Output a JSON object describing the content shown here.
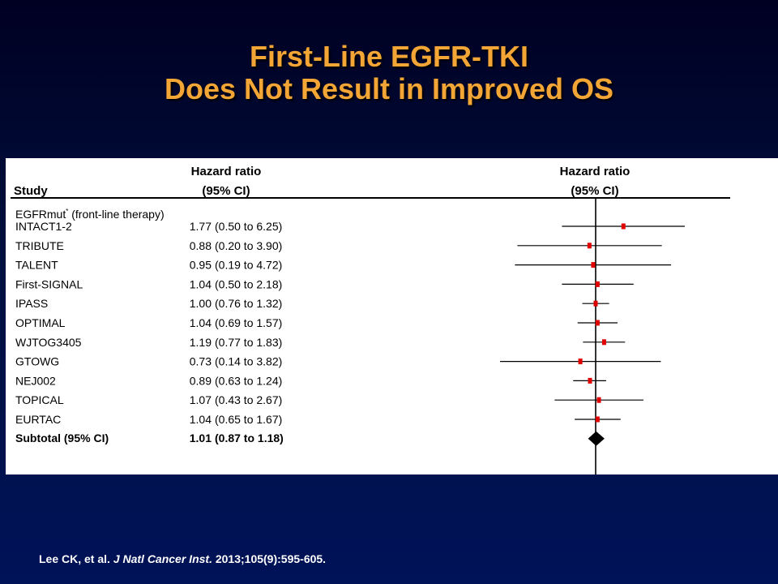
{
  "slide": {
    "title_line1": "First-Line EGFR-TKI",
    "title_line2": "Does Not Result in Improved OS"
  },
  "citation": {
    "authors": "Lee CK, et al. ",
    "journal": "J Natl Cancer Inst.",
    "details": " 2013;105(9):595-605."
  },
  "colors": {
    "title": "#f3a535",
    "marker": "#e00000",
    "line": "#000000",
    "background": "#00103f"
  },
  "chart_data": {
    "type": "forest",
    "columns": {
      "study_header": "Study",
      "hr_header_line1": "Hazard  ratio",
      "hr_header_line2": "(95% CI)",
      "plot_header_line1": "Hazard  ratio",
      "plot_header_line2": "(95% CI)"
    },
    "group_label": "EGFRmut",
    "group_label_sup": "*",
    "group_label_suffix": " (front-line therapy)",
    "reference_value": 1,
    "x_scale": "log",
    "studies": [
      {
        "name": "INTACT1-2",
        "hr": 1.77,
        "lo": 0.5,
        "hi": 6.25,
        "hr_text": "1.77",
        "ci_text": "(0.50 to 6.25)"
      },
      {
        "name": "TRIBUTE",
        "hr": 0.88,
        "lo": 0.2,
        "hi": 3.9,
        "hr_text": "0.88",
        "ci_text": "(0.20 to 3.90)"
      },
      {
        "name": "TALENT",
        "hr": 0.95,
        "lo": 0.19,
        "hi": 4.72,
        "hr_text": "0.95",
        "ci_text": "(0.19 to 4.72)"
      },
      {
        "name": "First-SIGNAL",
        "hr": 1.04,
        "lo": 0.5,
        "hi": 2.18,
        "hr_text": "1.04",
        "ci_text": "(0.50 to 2.18)"
      },
      {
        "name": "IPASS",
        "hr": 1.0,
        "lo": 0.76,
        "hi": 1.32,
        "hr_text": "1.00",
        "ci_text": "(0.76 to 1.32)"
      },
      {
        "name": "OPTIMAL",
        "hr": 1.04,
        "lo": 0.69,
        "hi": 1.57,
        "hr_text": "1.04",
        "ci_text": "(0.69 to 1.57)"
      },
      {
        "name": "WJTOG3405",
        "hr": 1.19,
        "lo": 0.77,
        "hi": 1.83,
        "hr_text": "1.19",
        "ci_text": "(0.77 to 1.83)"
      },
      {
        "name": "GTOWG",
        "hr": 0.73,
        "lo": 0.14,
        "hi": 3.82,
        "hr_text": "0.73",
        "ci_text": "(0.14 to 3.82)"
      },
      {
        "name": "NEJ002",
        "hr": 0.89,
        "lo": 0.63,
        "hi": 1.24,
        "hr_text": "0.89",
        "ci_text": "(0.63 to 1.24)"
      },
      {
        "name": "TOPICAL",
        "hr": 1.07,
        "lo": 0.43,
        "hi": 2.67,
        "hr_text": "1.07",
        "ci_text": "(0.43 to 2.67)"
      },
      {
        "name": "EURTAC",
        "hr": 1.04,
        "lo": 0.65,
        "hi": 1.67,
        "hr_text": "1.04",
        "ci_text": "(0.65 to 1.67)"
      }
    ],
    "subtotal": {
      "name": "Subtotal (95% CI)",
      "hr": 1.01,
      "lo": 0.87,
      "hi": 1.18,
      "hr_text": "1.01",
      "ci_text": "(0.87 to 1.18)"
    }
  }
}
